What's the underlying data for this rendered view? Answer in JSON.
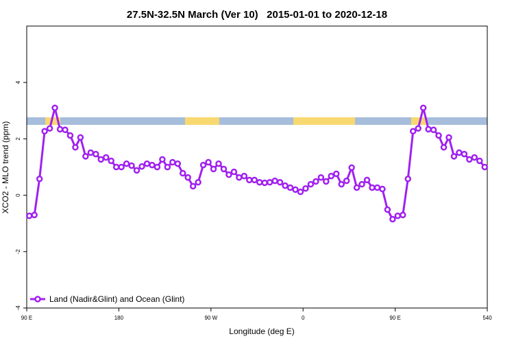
{
  "chart_data": {
    "type": "line",
    "title": "27.5N-32.5N March (Ver 10)   2015-01-01 to 2020-12-18",
    "x_label": "Longitude (deg E)",
    "y_label": "XCO2 - MLO trend (ppm)",
    "xlim": [
      90,
      540
    ],
    "ylim": [
      -4,
      6
    ],
    "xticks": [
      {
        "value": 90,
        "label": "90 E"
      },
      180,
      {
        "value": 270,
        "label": "90 W"
      },
      {
        "value": 360,
        "label": "0"
      },
      {
        "value": 450,
        "label": "90 E"
      },
      540
    ],
    "yticks": [
      -4,
      -2,
      0,
      2,
      4
    ],
    "legend": "bottom-left",
    "x": [
      92.5,
      97.5,
      102.5,
      107.5,
      112.5,
      117.5,
      122.5,
      127.5,
      132.5,
      137.5,
      142.5,
      147.5,
      152.5,
      157.5,
      162.5,
      167.5,
      172.5,
      177.5,
      182.5,
      187.5,
      192.5,
      197.5,
      202.5,
      207.5,
      212.5,
      217.5,
      222.5,
      227.5,
      232.5,
      237.5,
      242.5,
      247.5,
      252.5,
      257.5,
      262.5,
      267.5,
      272.5,
      277.5,
      282.5,
      287.5,
      292.5,
      297.5,
      302.5,
      307.5,
      312.5,
      317.5,
      322.5,
      327.5,
      332.5,
      337.5,
      342.5,
      347.5,
      352.5,
      357.5,
      362.5,
      367.5,
      372.5,
      377.5,
      382.5,
      387.5,
      392.5,
      397.5,
      402.5,
      407.5,
      412.5,
      417.5,
      422.5,
      427.5,
      432.5,
      437.5,
      442.5,
      447.5,
      452.5,
      457.5,
      462.5,
      467.5,
      472.5,
      477.5,
      482.5,
      487.5,
      492.5,
      497.5,
      502.5,
      507.5,
      512.5,
      517.5,
      522.5,
      527.5,
      532.5,
      537.5
    ],
    "series": [
      {
        "name": "Land (Nadir&Glint) and Ocean (Glint)",
        "color": "#a020f0",
        "values": [
          -0.73,
          -0.7,
          0.58,
          2.27,
          2.37,
          3.1,
          2.34,
          2.32,
          2.12,
          1.7,
          2.05,
          1.38,
          1.51,
          1.46,
          1.27,
          1.34,
          1.22,
          1.0,
          1.0,
          1.12,
          1.05,
          0.88,
          1.02,
          1.12,
          1.07,
          1.0,
          1.27,
          1.0,
          1.17,
          1.12,
          0.78,
          0.63,
          0.32,
          0.46,
          1.07,
          1.17,
          0.93,
          1.12,
          0.93,
          0.73,
          0.83,
          0.63,
          0.68,
          0.54,
          0.54,
          0.46,
          0.44,
          0.46,
          0.51,
          0.46,
          0.34,
          0.27,
          0.2,
          0.12,
          0.24,
          0.39,
          0.49,
          0.63,
          0.49,
          0.68,
          0.76,
          0.39,
          0.51,
          0.98,
          0.27,
          0.39,
          0.54,
          0.27,
          0.27,
          0.22,
          -0.51,
          -0.85,
          -0.73,
          -0.7,
          0.58,
          2.27,
          2.37,
          3.1,
          2.34,
          2.32,
          2.12,
          1.7,
          2.05,
          1.38,
          1.51,
          1.46,
          1.27,
          1.34,
          1.22,
          1.0
        ]
      }
    ]
  }
}
